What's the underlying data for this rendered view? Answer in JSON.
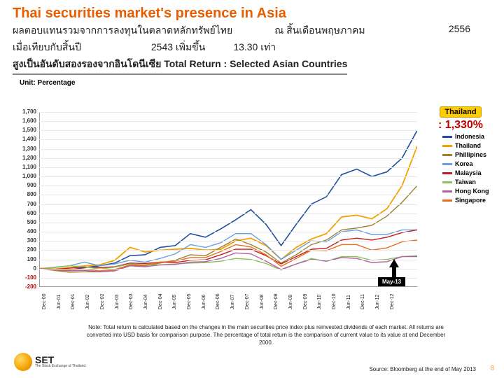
{
  "header": {
    "title": "Thai securities market's presence in Asia",
    "thai_row1_a": "ผลตอบแทนรวมจากการลงทุนในตลาดหลักทรัพย์ไทย",
    "thai_row1_b": "ณ สิ้นเดือนพฤษภาคม",
    "thai_row1_c": "2556",
    "thai_row2_a": "เมื่อเทียบกับสิ้นปี",
    "thai_row2_b": "2543 เพิ่มขึ้น",
    "thai_row2_c": "13.30 เท่า",
    "subtitle_overlap": "สูงเป็นอันดับสองรองจากอินโดนีเซีย",
    "subtitle_eng": "Total Return : Selected Asian Countries"
  },
  "unit_label": "Unit: Percentage",
  "chart": {
    "type": "line",
    "background_color": "#ffffff",
    "grid_color": "#e8e8e8",
    "axis_color": "#999999",
    "ylim": [
      -200,
      1700
    ],
    "ytick_step": 100,
    "yticks": [
      1700,
      1600,
      1500,
      1400,
      1300,
      1200,
      1100,
      1000,
      900,
      800,
      700,
      600,
      500,
      400,
      300,
      200,
      100,
      0,
      -100,
      -200
    ],
    "xlabels": [
      "Dec-00",
      "Jun-01",
      "Dec-01",
      "Jun-02",
      "Dec-02",
      "Jun-03",
      "Dec-03",
      "Jun-04",
      "Dec-04",
      "Jun-05",
      "Dec-05",
      "Jun-06",
      "Dec-06",
      "Jun-07",
      "Dec-07",
      "Jun-08",
      "Dec-08",
      "Jun-09",
      "Dec-09",
      "Jun-10",
      "Dec-10",
      "Jun-11",
      "Dec-11",
      "Jun-12",
      "Dec-12"
    ],
    "series": [
      {
        "name": "Indonesia",
        "color": "#1f4e9c",
        "width": 1.6,
        "values": [
          0,
          -10,
          -15,
          10,
          30,
          60,
          140,
          150,
          230,
          250,
          380,
          340,
          430,
          530,
          640,
          480,
          250,
          480,
          700,
          780,
          1020,
          1080,
          1000,
          1050,
          1200,
          1500
        ]
      },
      {
        "name": "Thailand",
        "color": "#f4a100",
        "width": 1.8,
        "values": [
          0,
          -5,
          10,
          30,
          40,
          90,
          230,
          180,
          200,
          210,
          220,
          200,
          210,
          300,
          330,
          250,
          100,
          230,
          320,
          380,
          560,
          580,
          540,
          650,
          900,
          1330
        ]
      },
      {
        "name": "Phillipines",
        "color": "#a08030",
        "width": 1.4,
        "values": [
          0,
          -20,
          -40,
          -35,
          -35,
          -20,
          30,
          30,
          60,
          90,
          150,
          140,
          230,
          320,
          260,
          180,
          60,
          150,
          260,
          310,
          420,
          440,
          470,
          570,
          720,
          900
        ]
      },
      {
        "name": "Korea",
        "color": "#6aa0d8",
        "width": 1.4,
        "values": [
          0,
          15,
          30,
          70,
          30,
          50,
          90,
          70,
          110,
          160,
          260,
          230,
          280,
          380,
          380,
          260,
          100,
          200,
          300,
          290,
          400,
          420,
          370,
          370,
          420,
          420
        ]
      },
      {
        "name": "Malaysia",
        "color": "#c02020",
        "width": 1.4,
        "values": [
          0,
          -10,
          5,
          15,
          10,
          20,
          60,
          55,
          70,
          65,
          90,
          95,
          150,
          210,
          210,
          140,
          50,
          130,
          210,
          220,
          310,
          330,
          310,
          340,
          390,
          420
        ]
      },
      {
        "name": "Taiwan",
        "color": "#8fc060",
        "width": 1.4,
        "values": [
          0,
          10,
          30,
          20,
          -5,
          15,
          50,
          40,
          40,
          50,
          60,
          65,
          80,
          110,
          100,
          55,
          -15,
          50,
          110,
          80,
          130,
          130,
          90,
          100,
          130,
          140
        ]
      },
      {
        "name": "Hong Kong",
        "color": "#b060a0",
        "width": 1.4,
        "values": [
          0,
          -15,
          -25,
          -20,
          -35,
          -25,
          30,
          20,
          40,
          45,
          70,
          75,
          110,
          170,
          160,
          80,
          -10,
          50,
          100,
          80,
          120,
          110,
          65,
          75,
          130,
          130
        ]
      },
      {
        "name": "Singapore",
        "color": "#e86d1f",
        "width": 1.4,
        "values": [
          0,
          -10,
          -15,
          -5,
          -25,
          -10,
          40,
          40,
          70,
          80,
          120,
          120,
          185,
          260,
          235,
          150,
          25,
          110,
          200,
          195,
          260,
          260,
          200,
          225,
          290,
          310
        ]
      }
    ],
    "label_fontsize": 8,
    "tick_fontsize": 8
  },
  "legend_items": [
    {
      "label": "Indonesia",
      "color": "#1f4e9c"
    },
    {
      "label": "Thailand",
      "color": "#f4a100"
    },
    {
      "label": "Phillipines",
      "color": "#a08030"
    },
    {
      "label": "Korea",
      "color": "#6aa0d8"
    },
    {
      "label": "Malaysia",
      "color": "#c02020"
    },
    {
      "label": "Taiwan",
      "color": "#8fc060"
    },
    {
      "label": "Hong Kong",
      "color": "#b060a0"
    },
    {
      "label": "Singapore",
      "color": "#e86d1f"
    }
  ],
  "callout": {
    "country": "Thailand",
    "value": ": 1,330%",
    "bg": "#ffcc00",
    "value_color": "#c00000"
  },
  "end_marker": "May-13",
  "note": "Note: Total return is calculated based on the changes in the main securities price index plus reinvested dividends of each market. All returns are converted into USD basis for comparison purpose. The percentage of total return is the comparison of current value to its value at end December 2000.",
  "source": "Source: Bloomberg at the end of May 2013",
  "page_number": "8",
  "logo": {
    "text": "SET",
    "sub": "The Stock Exchange of Thailand"
  }
}
